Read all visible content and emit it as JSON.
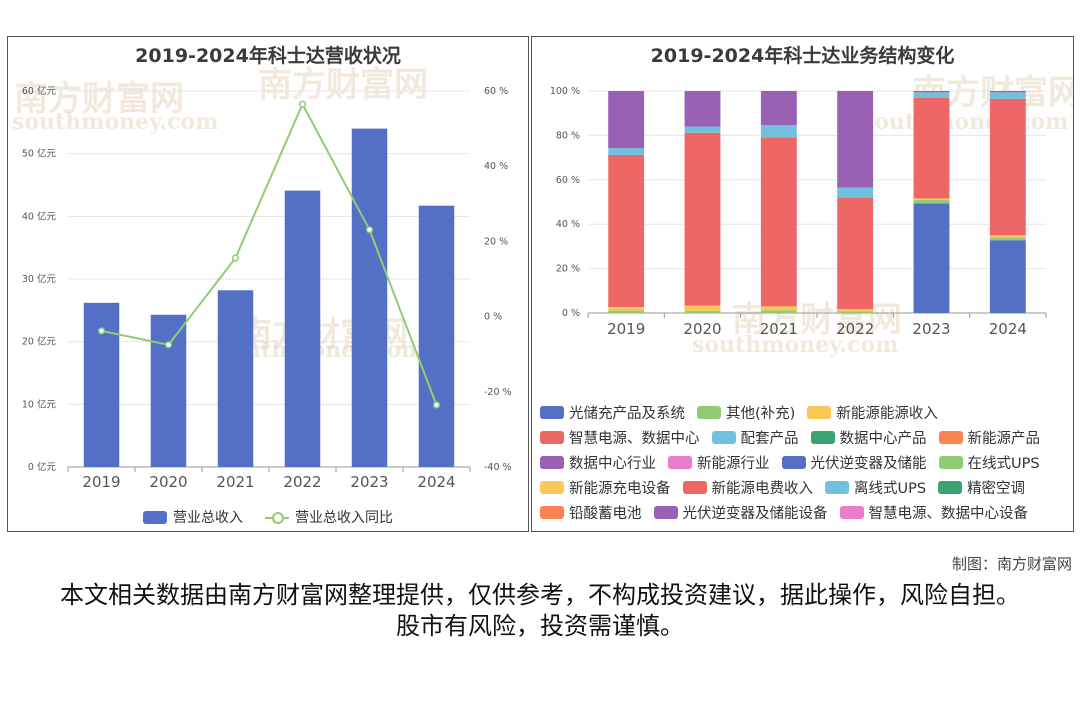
{
  "colors": {
    "revenue_bar": "#5470c6",
    "yoy_line": "#91cc75",
    "grid": "#e6e6e6",
    "axis_text": "#555555",
    "watermark": "#e9d8c4"
  },
  "watermark": {
    "cn": "南方财富网",
    "en": "southmoney.com"
  },
  "credit": "制图：南方财富网",
  "disclaimer": "本文相关数据由南方财富网整理提供，仅供参考，不构成投资建议，据此操作，风险自担。股市有风险，投资需谨慎。",
  "chart_data": [
    {
      "type": "bar",
      "title": "2019-2024年科士达营收状况",
      "categories": [
        "2019",
        "2020",
        "2021",
        "2022",
        "2023",
        "2024"
      ],
      "y_left_ticks": [
        "0 亿元",
        "10 亿元",
        "20 亿元",
        "30 亿元",
        "40 亿元",
        "50 亿元",
        "60 亿元"
      ],
      "y_right_ticks": [
        "-40 %",
        "-20 %",
        "0 %",
        "20 %",
        "40 %",
        "60 %"
      ],
      "ylim_left": [
        0,
        60
      ],
      "ylim_right": [
        -40,
        60
      ],
      "grid": true,
      "legend_position": "bottom",
      "series": [
        {
          "name": "营业总收入",
          "kind": "bar",
          "axis": "left",
          "color": "#5470c6",
          "values": [
            26.2,
            24.3,
            28.2,
            44.1,
            54.0,
            41.7
          ]
        },
        {
          "name": "营业总收入同比",
          "kind": "line",
          "axis": "right",
          "color": "#91cc75",
          "values": [
            -3.8,
            -7.5,
            15.6,
            56.5,
            23.1,
            -23.5
          ]
        }
      ]
    },
    {
      "type": "bar",
      "stacked": true,
      "title": "2019-2024年科士达业务结构变化",
      "categories": [
        "2019",
        "2020",
        "2021",
        "2022",
        "2023",
        "2024"
      ],
      "y_ticks": [
        "0 %",
        "20 %",
        "40 %",
        "60 %",
        "80 %",
        "100 %"
      ],
      "ylim": [
        0,
        100
      ],
      "grid": true,
      "legend_position": "bottom",
      "series": [
        {
          "name": "光储充产品及系统",
          "color": "#5470c6",
          "values": [
            0,
            0,
            0,
            0,
            49.4,
            32.8
          ]
        },
        {
          "name": "其他(补充)",
          "color": "#91cc75",
          "values": [
            1.1,
            1.0,
            1.2,
            0.8,
            1.6,
            1.3
          ]
        },
        {
          "name": "新能源能源收入",
          "color": "#fac858",
          "values": [
            1.6,
            2.3,
            1.8,
            0.9,
            0.6,
            0.9
          ]
        },
        {
          "name": "智慧电源、数据中心",
          "color": "#ee6666",
          "values": [
            68.5,
            77.9,
            76.1,
            50.4,
            45.4,
            61.5
          ]
        },
        {
          "name": "配套产品",
          "color": "#73c0de",
          "values": [
            3.1,
            2.8,
            5.5,
            4.4,
            2.4,
            2.9
          ]
        },
        {
          "name": "数据中心产品",
          "color": "#3ba272",
          "values": [
            0,
            0,
            0,
            0,
            0,
            0
          ]
        },
        {
          "name": "新能源产品",
          "color": "#fc8452",
          "values": [
            0,
            0,
            0,
            0,
            0,
            0
          ]
        },
        {
          "name": "数据中心行业",
          "color": "#9a60b4",
          "values": [
            25.7,
            16.0,
            15.4,
            43.5,
            0.6,
            0.6
          ]
        },
        {
          "name": "新能源行业",
          "color": "#ea7ccc",
          "values": [
            0,
            0,
            0,
            0,
            0,
            0
          ]
        },
        {
          "name": "光伏逆变器及储能",
          "color": "#5470c6",
          "values": [
            0,
            0,
            0,
            0,
            0,
            0
          ]
        },
        {
          "name": "在线式UPS",
          "color": "#91cc75",
          "values": [
            0,
            0,
            0,
            0,
            0,
            0
          ]
        },
        {
          "name": "新能源充电设备",
          "color": "#fac858",
          "values": [
            0,
            0,
            0,
            0,
            0,
            0
          ]
        },
        {
          "name": "新能源电费收入",
          "color": "#ee6666",
          "values": [
            0,
            0,
            0,
            0,
            0,
            0
          ]
        },
        {
          "name": "离线式UPS",
          "color": "#73c0de",
          "values": [
            0,
            0,
            0,
            0,
            0,
            0
          ]
        },
        {
          "name": "精密空调",
          "color": "#3ba272",
          "values": [
            0,
            0,
            0,
            0,
            0,
            0
          ]
        },
        {
          "name": "铅酸蓄电池",
          "color": "#fc8452",
          "values": [
            0,
            0,
            0,
            0,
            0,
            0
          ]
        },
        {
          "name": "光伏逆变器及储能设备",
          "color": "#9a60b4",
          "values": [
            0,
            0,
            0,
            0,
            0,
            0
          ]
        },
        {
          "name": "智慧电源、数据中心设备",
          "color": "#ea7ccc",
          "values": [
            0,
            0,
            0,
            0,
            0,
            0
          ]
        }
      ]
    }
  ]
}
